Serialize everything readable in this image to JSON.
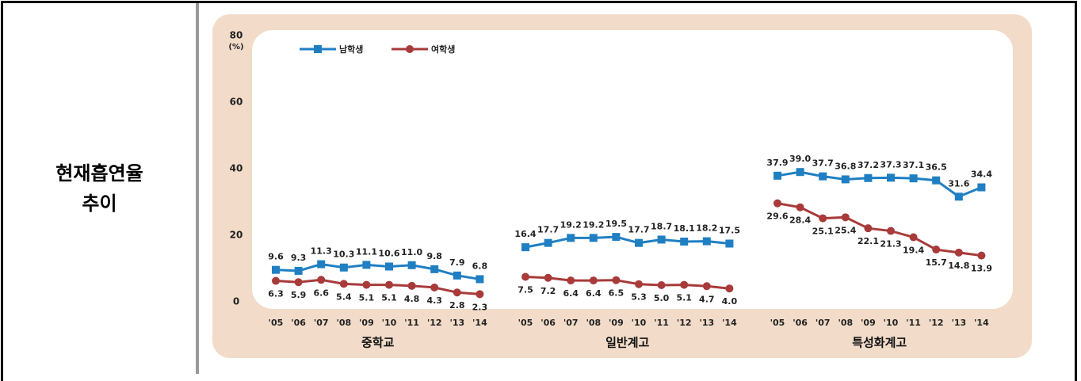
{
  "row_label": [
    "현재흡연율",
    "추이"
  ],
  "chart_data": {
    "type": "line",
    "ylim": [
      0,
      80
    ],
    "yticks": [
      0,
      20,
      40,
      60,
      80
    ],
    "y_unit": "(%)",
    "legend": [
      {
        "name": "남학생",
        "color": "#1f7fc2"
      },
      {
        "name": "여학생",
        "color": "#a83a3a"
      }
    ],
    "groups": [
      {
        "label": "중학교",
        "categories": [
          "'05",
          "'06",
          "'07",
          "'08",
          "'09",
          "'10",
          "'11",
          "'12",
          "'13",
          "'14"
        ],
        "series": [
          {
            "values": [
              9.6,
              9.3,
              11.3,
              10.3,
              11.1,
              10.6,
              11.0,
              9.8,
              7.9,
              6.8
            ],
            "value_labels": [
              "9.6",
              "9.3",
              "11.3",
              "10.3",
              "11.1",
              "10.6",
              "11.0",
              "9.8",
              "7.9",
              "6.8"
            ]
          },
          {
            "values": [
              6.3,
              5.9,
              6.6,
              5.4,
              5.1,
              5.1,
              4.8,
              4.3,
              2.8,
              2.3
            ],
            "value_labels": [
              "6.3",
              "5.9",
              "6.6",
              "5.4",
              "5.1",
              "5.1",
              "4.8",
              "4.3",
              "2.8",
              "2.3"
            ]
          }
        ]
      },
      {
        "label": "일반계고",
        "categories": [
          "'05",
          "'06",
          "'07",
          "'08",
          "'09",
          "'10",
          "'11",
          "'12",
          "'13",
          "'14"
        ],
        "series": [
          {
            "values": [
              16.4,
              17.7,
              19.2,
              19.2,
              19.5,
              17.7,
              18.7,
              18.1,
              18.2,
              17.5
            ],
            "value_labels": [
              "16.4",
              "17.7",
              "19.2",
              "19.2",
              "19.5",
              "17.7",
              "18.7",
              "18.1",
              "18.2",
              "17.5"
            ]
          },
          {
            "values": [
              7.5,
              7.2,
              6.4,
              6.4,
              6.5,
              5.3,
              5.0,
              5.1,
              4.7,
              4.0
            ],
            "value_labels": [
              "7.5",
              "7.2",
              "6.4",
              "6.4",
              "6.5",
              "5.3",
              "5.0",
              "5.1",
              "4.7",
              "4.0"
            ]
          }
        ]
      },
      {
        "label": "특성화계고",
        "categories": [
          "'05",
          "'06",
          "'07",
          "'08",
          "'09",
          "'10",
          "'11",
          "'12",
          "'13",
          "'14"
        ],
        "series": [
          {
            "values": [
              37.9,
              39.0,
              37.7,
              36.8,
              37.2,
              37.3,
              37.1,
              36.5,
              31.6,
              34.4
            ],
            "value_labels": [
              "37.9",
              "39.0",
              "37.7",
              "36.8",
              "37.2",
              "37.3",
              "37.1",
              "36.5",
              "31.6",
              "34.4"
            ]
          },
          {
            "values": [
              29.6,
              28.4,
              25.1,
              25.4,
              22.1,
              21.3,
              19.4,
              15.7,
              14.8,
              13.9
            ],
            "value_labels": [
              "29.6",
              "28.4",
              "25.1",
              "25.4",
              "22.1",
              "21.3",
              "19.4",
              "15.7",
              "14.8",
              "13.9"
            ]
          }
        ]
      }
    ]
  }
}
